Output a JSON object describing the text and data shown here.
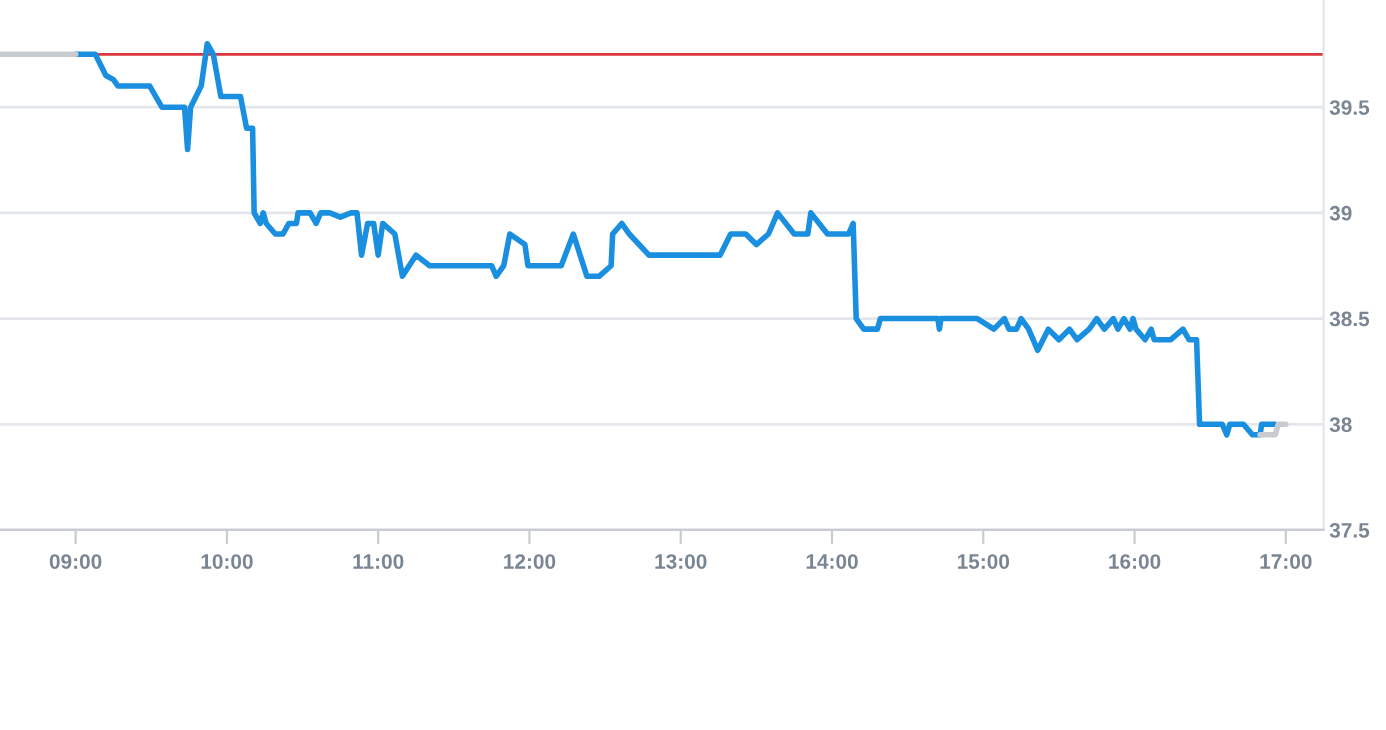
{
  "chart_data": {
    "type": "line",
    "x": [
      9.0,
      9.13,
      9.2,
      9.25,
      9.28,
      9.49,
      9.57,
      9.72,
      9.74,
      9.76,
      9.83,
      9.87,
      9.91,
      9.96,
      10.09,
      10.13,
      10.17,
      10.18,
      10.22,
      10.24,
      10.26,
      10.32,
      10.37,
      10.41,
      10.46,
      10.47,
      10.55,
      10.59,
      10.62,
      10.68,
      10.75,
      10.82,
      10.86,
      10.89,
      10.93,
      10.97,
      11.0,
      11.03,
      11.11,
      11.16,
      11.25,
      11.34,
      11.75,
      11.78,
      11.83,
      11.87,
      11.97,
      11.99,
      12.21,
      12.29,
      12.38,
      12.46,
      12.54,
      12.55,
      12.61,
      12.66,
      12.79,
      13.26,
      13.33,
      13.43,
      13.5,
      13.58,
      13.64,
      13.75,
      13.84,
      13.86,
      13.97,
      14.11,
      14.14,
      14.16,
      14.21,
      14.3,
      14.32,
      14.7,
      14.71,
      14.72,
      14.96,
      15.07,
      15.14,
      15.17,
      15.22,
      15.25,
      15.3,
      15.36,
      15.43,
      15.5,
      15.57,
      15.62,
      15.7,
      15.75,
      15.8,
      15.86,
      15.89,
      15.93,
      15.97,
      15.99,
      16.01,
      16.07,
      16.11,
      16.13,
      16.24,
      16.32,
      16.36,
      16.41,
      16.43,
      16.58,
      16.61,
      16.63,
      16.72,
      16.78,
      16.83,
      16.84,
      16.93
    ],
    "series": [
      {
        "color": "#1a8fe0",
        "values": [
          39.75,
          39.75,
          39.65,
          39.63,
          39.6,
          39.6,
          39.5,
          39.5,
          39.3,
          39.5,
          39.6,
          39.8,
          39.75,
          39.55,
          39.55,
          39.4,
          39.4,
          39.0,
          38.95,
          39.0,
          38.95,
          38.9,
          38.9,
          38.95,
          38.95,
          39.0,
          39.0,
          38.95,
          39.0,
          39.0,
          38.98,
          39.0,
          39.0,
          38.8,
          38.95,
          38.95,
          38.8,
          38.95,
          38.9,
          38.7,
          38.8,
          38.75,
          38.75,
          38.7,
          38.75,
          38.9,
          38.85,
          38.75,
          38.75,
          38.9,
          38.7,
          38.7,
          38.75,
          38.9,
          38.95,
          38.9,
          38.8,
          38.8,
          38.9,
          38.9,
          38.85,
          38.9,
          39.0,
          38.9,
          38.9,
          39.0,
          38.9,
          38.9,
          38.95,
          38.5,
          38.45,
          38.45,
          38.5,
          38.5,
          38.45,
          38.5,
          38.5,
          38.45,
          38.5,
          38.45,
          38.45,
          38.5,
          38.45,
          38.35,
          38.45,
          38.4,
          38.45,
          38.4,
          38.45,
          38.5,
          38.45,
          38.5,
          38.45,
          38.5,
          38.45,
          38.5,
          38.45,
          38.4,
          38.45,
          38.4,
          38.4,
          38.45,
          38.4,
          38.4,
          38.0,
          38.0,
          37.95,
          38.0,
          38.0,
          37.95,
          37.95,
          38.0,
          38.0
        ]
      },
      {
        "color": "#c8ccd0",
        "x": [
          8.5,
          9.0
        ],
        "values": [
          39.75,
          39.75
        ]
      },
      {
        "color": "#c8ccd0",
        "x": [
          16.83,
          16.93,
          16.95,
          17.0
        ],
        "values": [
          37.95,
          37.95,
          38.0,
          38.0
        ]
      }
    ],
    "xlim": [
      8.5,
      17.25
    ],
    "ylim": [
      37.5,
      40.0
    ],
    "xticks": [
      {
        "value": 9,
        "label": "09:00"
      },
      {
        "value": 10,
        "label": "10:00"
      },
      {
        "value": 11,
        "label": "11:00"
      },
      {
        "value": 12,
        "label": "12:00"
      },
      {
        "value": 13,
        "label": "13:00"
      },
      {
        "value": 14,
        "label": "14:00"
      },
      {
        "value": 15,
        "label": "15:00"
      },
      {
        "value": 16,
        "label": "16:00"
      },
      {
        "value": 17,
        "label": "17:00"
      }
    ],
    "yticks": [
      37.5,
      38,
      38.5,
      39,
      39.5
    ],
    "ref_lines": [
      {
        "axis": "y",
        "value": 39.75,
        "color": "#d9363e"
      }
    ],
    "grid": "y",
    "legend": false
  }
}
